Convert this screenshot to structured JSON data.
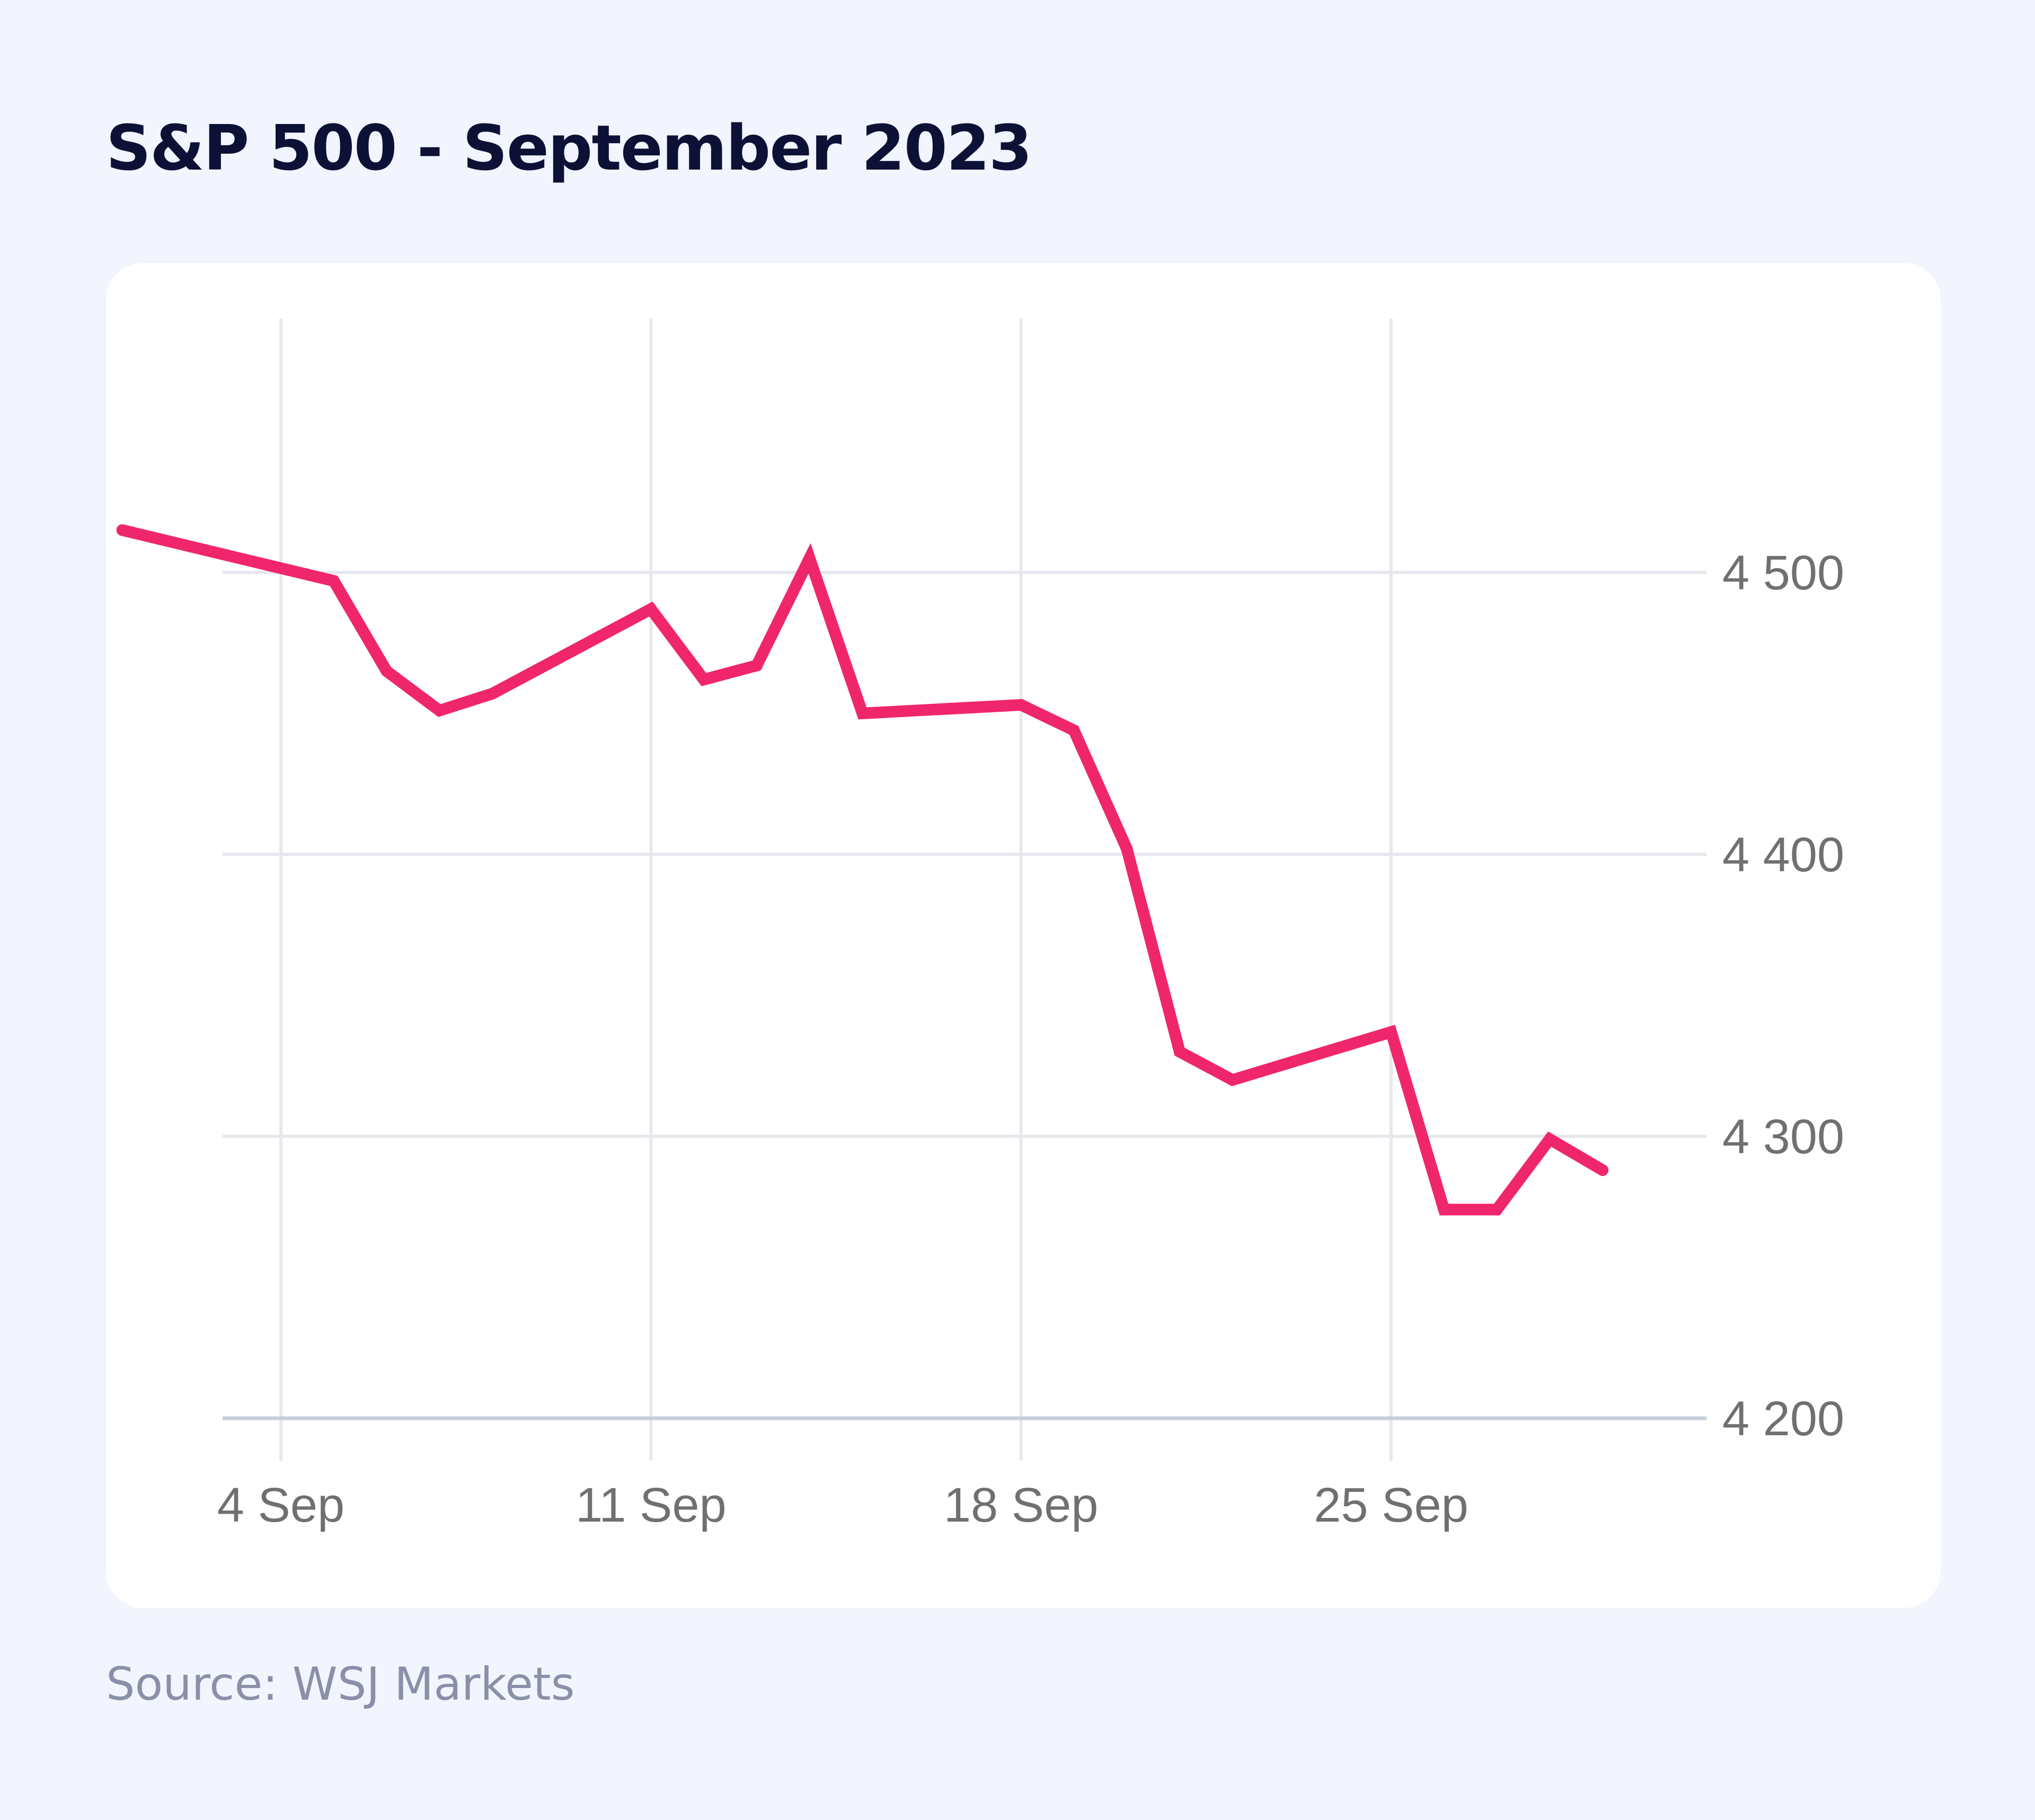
{
  "title": "S&P 500 - September 2023",
  "source": "Source: WSJ Markets",
  "colors": {
    "line": "#f0266d",
    "grid": "#e6e8ee",
    "axis": "#c5ceda",
    "text": "#707070"
  },
  "chart_data": {
    "type": "line",
    "title": "S&P 500 - September 2023",
    "xlabel": "",
    "ylabel": "",
    "ylim": [
      4200,
      4500
    ],
    "y_axis_position": "right",
    "grid": true,
    "x_ticks": [
      {
        "date": "2023-09-04",
        "label": "4 Sep"
      },
      {
        "date": "2023-09-11",
        "label": "11 Sep"
      },
      {
        "date": "2023-09-18",
        "label": "18 Sep"
      },
      {
        "date": "2023-09-25",
        "label": "25 Sep"
      }
    ],
    "y_ticks": [
      {
        "value": 4500,
        "label": "4 500"
      },
      {
        "value": 4400,
        "label": "4 400"
      },
      {
        "value": 4300,
        "label": "4 300"
      },
      {
        "value": 4200,
        "label": "4 200"
      }
    ],
    "series": [
      {
        "points": [
          {
            "x": "2023-09-01",
            "y": 4515
          },
          {
            "x": "2023-09-05",
            "y": 4497
          },
          {
            "x": "2023-09-06",
            "y": 4465
          },
          {
            "x": "2023-09-07",
            "y": 4451
          },
          {
            "x": "2023-09-08",
            "y": 4457
          },
          {
            "x": "2023-09-11",
            "y": 4487
          },
          {
            "x": "2023-09-12",
            "y": 4462
          },
          {
            "x": "2023-09-13",
            "y": 4467
          },
          {
            "x": "2023-09-14",
            "y": 4505
          },
          {
            "x": "2023-09-15",
            "y": 4450
          },
          {
            "x": "2023-09-18",
            "y": 4453
          },
          {
            "x": "2023-09-19",
            "y": 4444
          },
          {
            "x": "2023-09-20",
            "y": 4402
          },
          {
            "x": "2023-09-21",
            "y": 4330
          },
          {
            "x": "2023-09-22",
            "y": 4320
          },
          {
            "x": "2023-09-25",
            "y": 4337
          },
          {
            "x": "2023-09-26",
            "y": 4274
          },
          {
            "x": "2023-09-27",
            "y": 4274
          },
          {
            "x": "2023-09-28",
            "y": 4299
          },
          {
            "x": "2023-09-29",
            "y": 4288
          }
        ]
      }
    ]
  }
}
